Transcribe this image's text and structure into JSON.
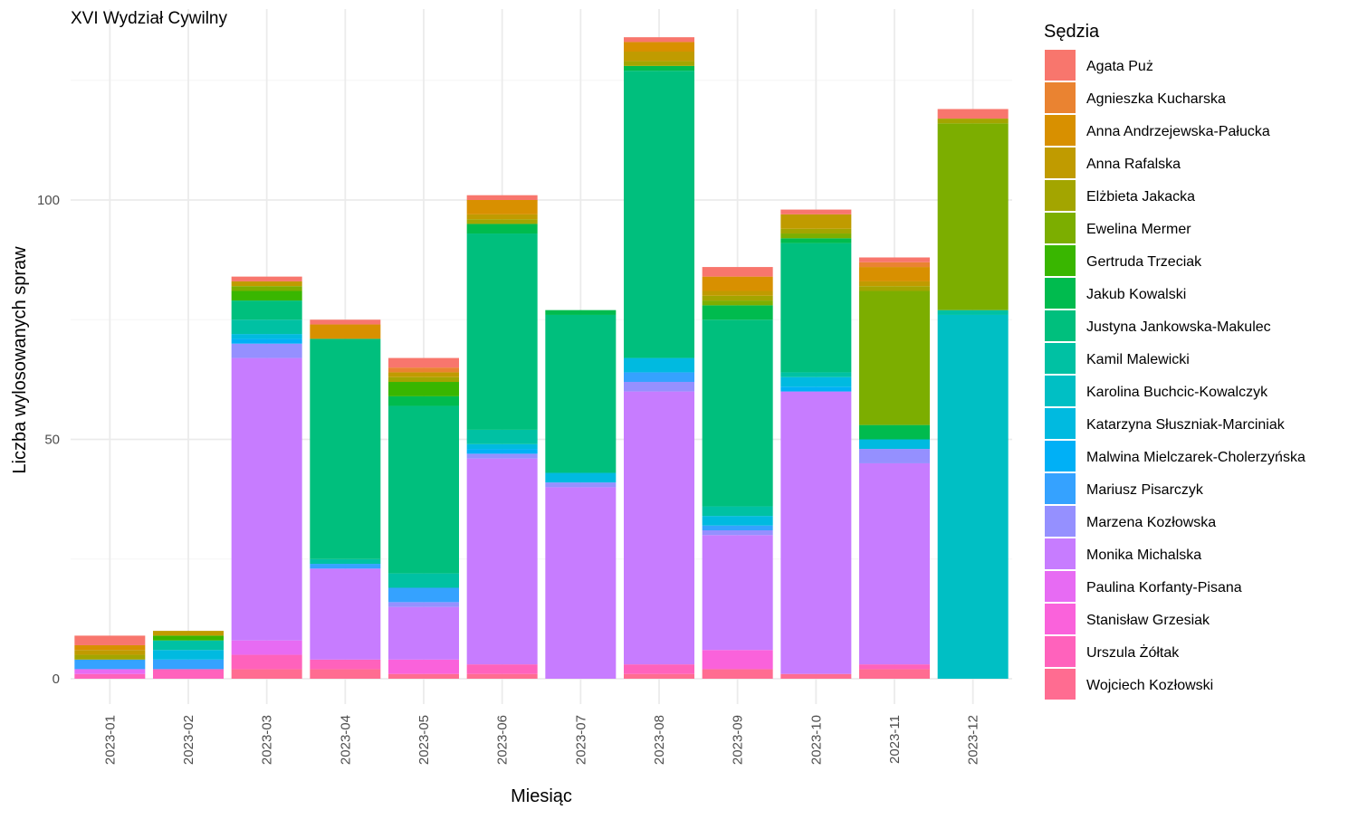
{
  "chart_data": {
    "type": "bar",
    "stacked": true,
    "title": "XVI Wydział Cywilny",
    "xlabel": "Miesiąc",
    "ylabel": "Liczba wylosowanych spraw",
    "ylim": [
      -5,
      134
    ],
    "yticks": [
      0,
      50,
      100
    ],
    "grid": true,
    "legend_position": "right",
    "legend_title": "Sędzia",
    "categories": [
      "2023-01",
      "2023-02",
      "2023-03",
      "2023-04",
      "2023-05",
      "2023-06",
      "2023-07",
      "2023-08",
      "2023-09",
      "2023-10",
      "2023-11",
      "2023-12"
    ],
    "series": [
      {
        "name": "Agata Puż",
        "color": "#F8766D",
        "values": [
          2,
          0,
          1,
          1,
          2,
          1,
          0,
          1,
          2,
          1,
          1,
          2
        ]
      },
      {
        "name": "Agnieszka Kucharska",
        "color": "#EA8331",
        "values": [
          0,
          0,
          0,
          0,
          1,
          0,
          0,
          0,
          0,
          0,
          1,
          0
        ]
      },
      {
        "name": "Anna Andrzejewska-Pałucka",
        "color": "#D89000",
        "values": [
          1,
          0,
          0,
          3,
          0,
          3,
          0,
          2,
          3,
          0,
          3,
          0
        ]
      },
      {
        "name": "Anna Rafalska",
        "color": "#C09B00",
        "values": [
          1,
          1,
          1,
          0,
          1,
          1,
          0,
          2,
          1,
          3,
          1,
          0
        ]
      },
      {
        "name": "Elżbieta Jakacka",
        "color": "#A3A500",
        "values": [
          1,
          0,
          0,
          0,
          1,
          1,
          0,
          1,
          1,
          1,
          1,
          1
        ]
      },
      {
        "name": "Ewelina Mermer",
        "color": "#7CAE00",
        "values": [
          0,
          0,
          1,
          0,
          0,
          0,
          0,
          0,
          1,
          1,
          28,
          39
        ]
      },
      {
        "name": "Gertruda Trzeciak",
        "color": "#39B600",
        "values": [
          0,
          1,
          2,
          0,
          3,
          0,
          0,
          0,
          0,
          0,
          0,
          0
        ]
      },
      {
        "name": "Jakub Kowalski",
        "color": "#00BB4E",
        "values": [
          0,
          0,
          0,
          0,
          2,
          2,
          1,
          1,
          3,
          1,
          3,
          0
        ]
      },
      {
        "name": "Justyna Jankowska-Makulec",
        "color": "#00BF7D",
        "values": [
          0,
          0,
          4,
          46,
          35,
          41,
          33,
          60,
          39,
          27,
          0,
          0
        ]
      },
      {
        "name": "Kamil Malewicki",
        "color": "#00C1A3",
        "values": [
          0,
          2,
          3,
          1,
          3,
          3,
          0,
          0,
          2,
          1,
          0,
          1
        ]
      },
      {
        "name": "Karolina Buchcic-Kowalczyk",
        "color": "#00BFC4",
        "values": [
          0,
          0,
          0,
          0,
          0,
          0,
          0,
          0,
          0,
          0,
          0,
          76
        ]
      },
      {
        "name": "Katarzyna Słuszniak-Marciniak",
        "color": "#00BAE0",
        "values": [
          0,
          2,
          1,
          0,
          0,
          1,
          2,
          3,
          2,
          2,
          2,
          0
        ]
      },
      {
        "name": "Malwina Mielczarek-Cholerzyńska",
        "color": "#00B0F6",
        "values": [
          0,
          0,
          1,
          0,
          0,
          1,
          0,
          0,
          0,
          1,
          0,
          0
        ]
      },
      {
        "name": "Mariusz Pisarczyk",
        "color": "#35A2FF",
        "values": [
          2,
          2,
          0,
          1,
          3,
          0,
          0,
          2,
          1,
          0,
          0,
          0
        ]
      },
      {
        "name": "Marzena Kozłowska",
        "color": "#9590FF",
        "values": [
          0,
          0,
          3,
          0,
          1,
          1,
          1,
          2,
          1,
          0,
          3,
          0
        ]
      },
      {
        "name": "Monika Michalska",
        "color": "#C77CFF",
        "values": [
          0,
          0,
          59,
          19,
          11,
          43,
          40,
          57,
          24,
          59,
          42,
          0
        ]
      },
      {
        "name": "Paulina Korfanty-Pisana",
        "color": "#E76BF3",
        "values": [
          1,
          0,
          3,
          0,
          0,
          0,
          0,
          0,
          0,
          0,
          0,
          0
        ]
      },
      {
        "name": "Stanisław Grzesiak",
        "color": "#FA62DB",
        "values": [
          0,
          0,
          0,
          0,
          3,
          0,
          0,
          0,
          4,
          0,
          0,
          0
        ]
      },
      {
        "name": "Urszula Żółtak",
        "color": "#FF62BC",
        "values": [
          1,
          2,
          3,
          2,
          0,
          2,
          0,
          2,
          0,
          0,
          1,
          0
        ]
      },
      {
        "name": "Wojciech Kozłowski",
        "color": "#FF6C91",
        "values": [
          0,
          0,
          2,
          2,
          1,
          1,
          0,
          1,
          2,
          1,
          2,
          0
        ]
      }
    ]
  }
}
